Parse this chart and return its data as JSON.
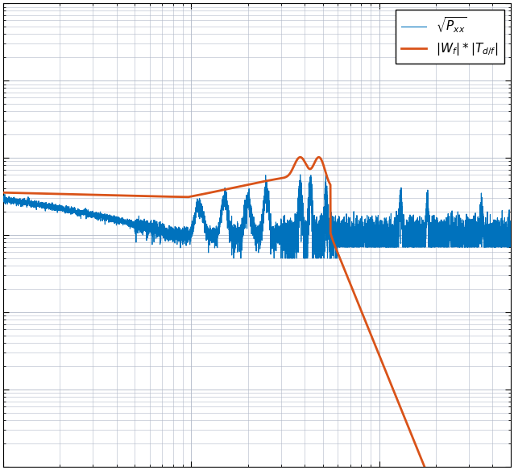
{
  "title": "",
  "xlabel": "",
  "ylabel": "",
  "blue_color": "#0072BD",
  "orange_color": "#D95319",
  "background_color": "#ffffff",
  "grid_color": "#b0b8c8",
  "legend_labels": [
    "$\\sqrt{P_{xx}}$",
    "$|W_f| * |T_{d/f}|$"
  ],
  "fig_width": 6.38,
  "fig_height": 5.84,
  "dpi": 100,
  "xlim": [
    1,
    500
  ],
  "ylim": [
    1e-10,
    0.0001
  ]
}
